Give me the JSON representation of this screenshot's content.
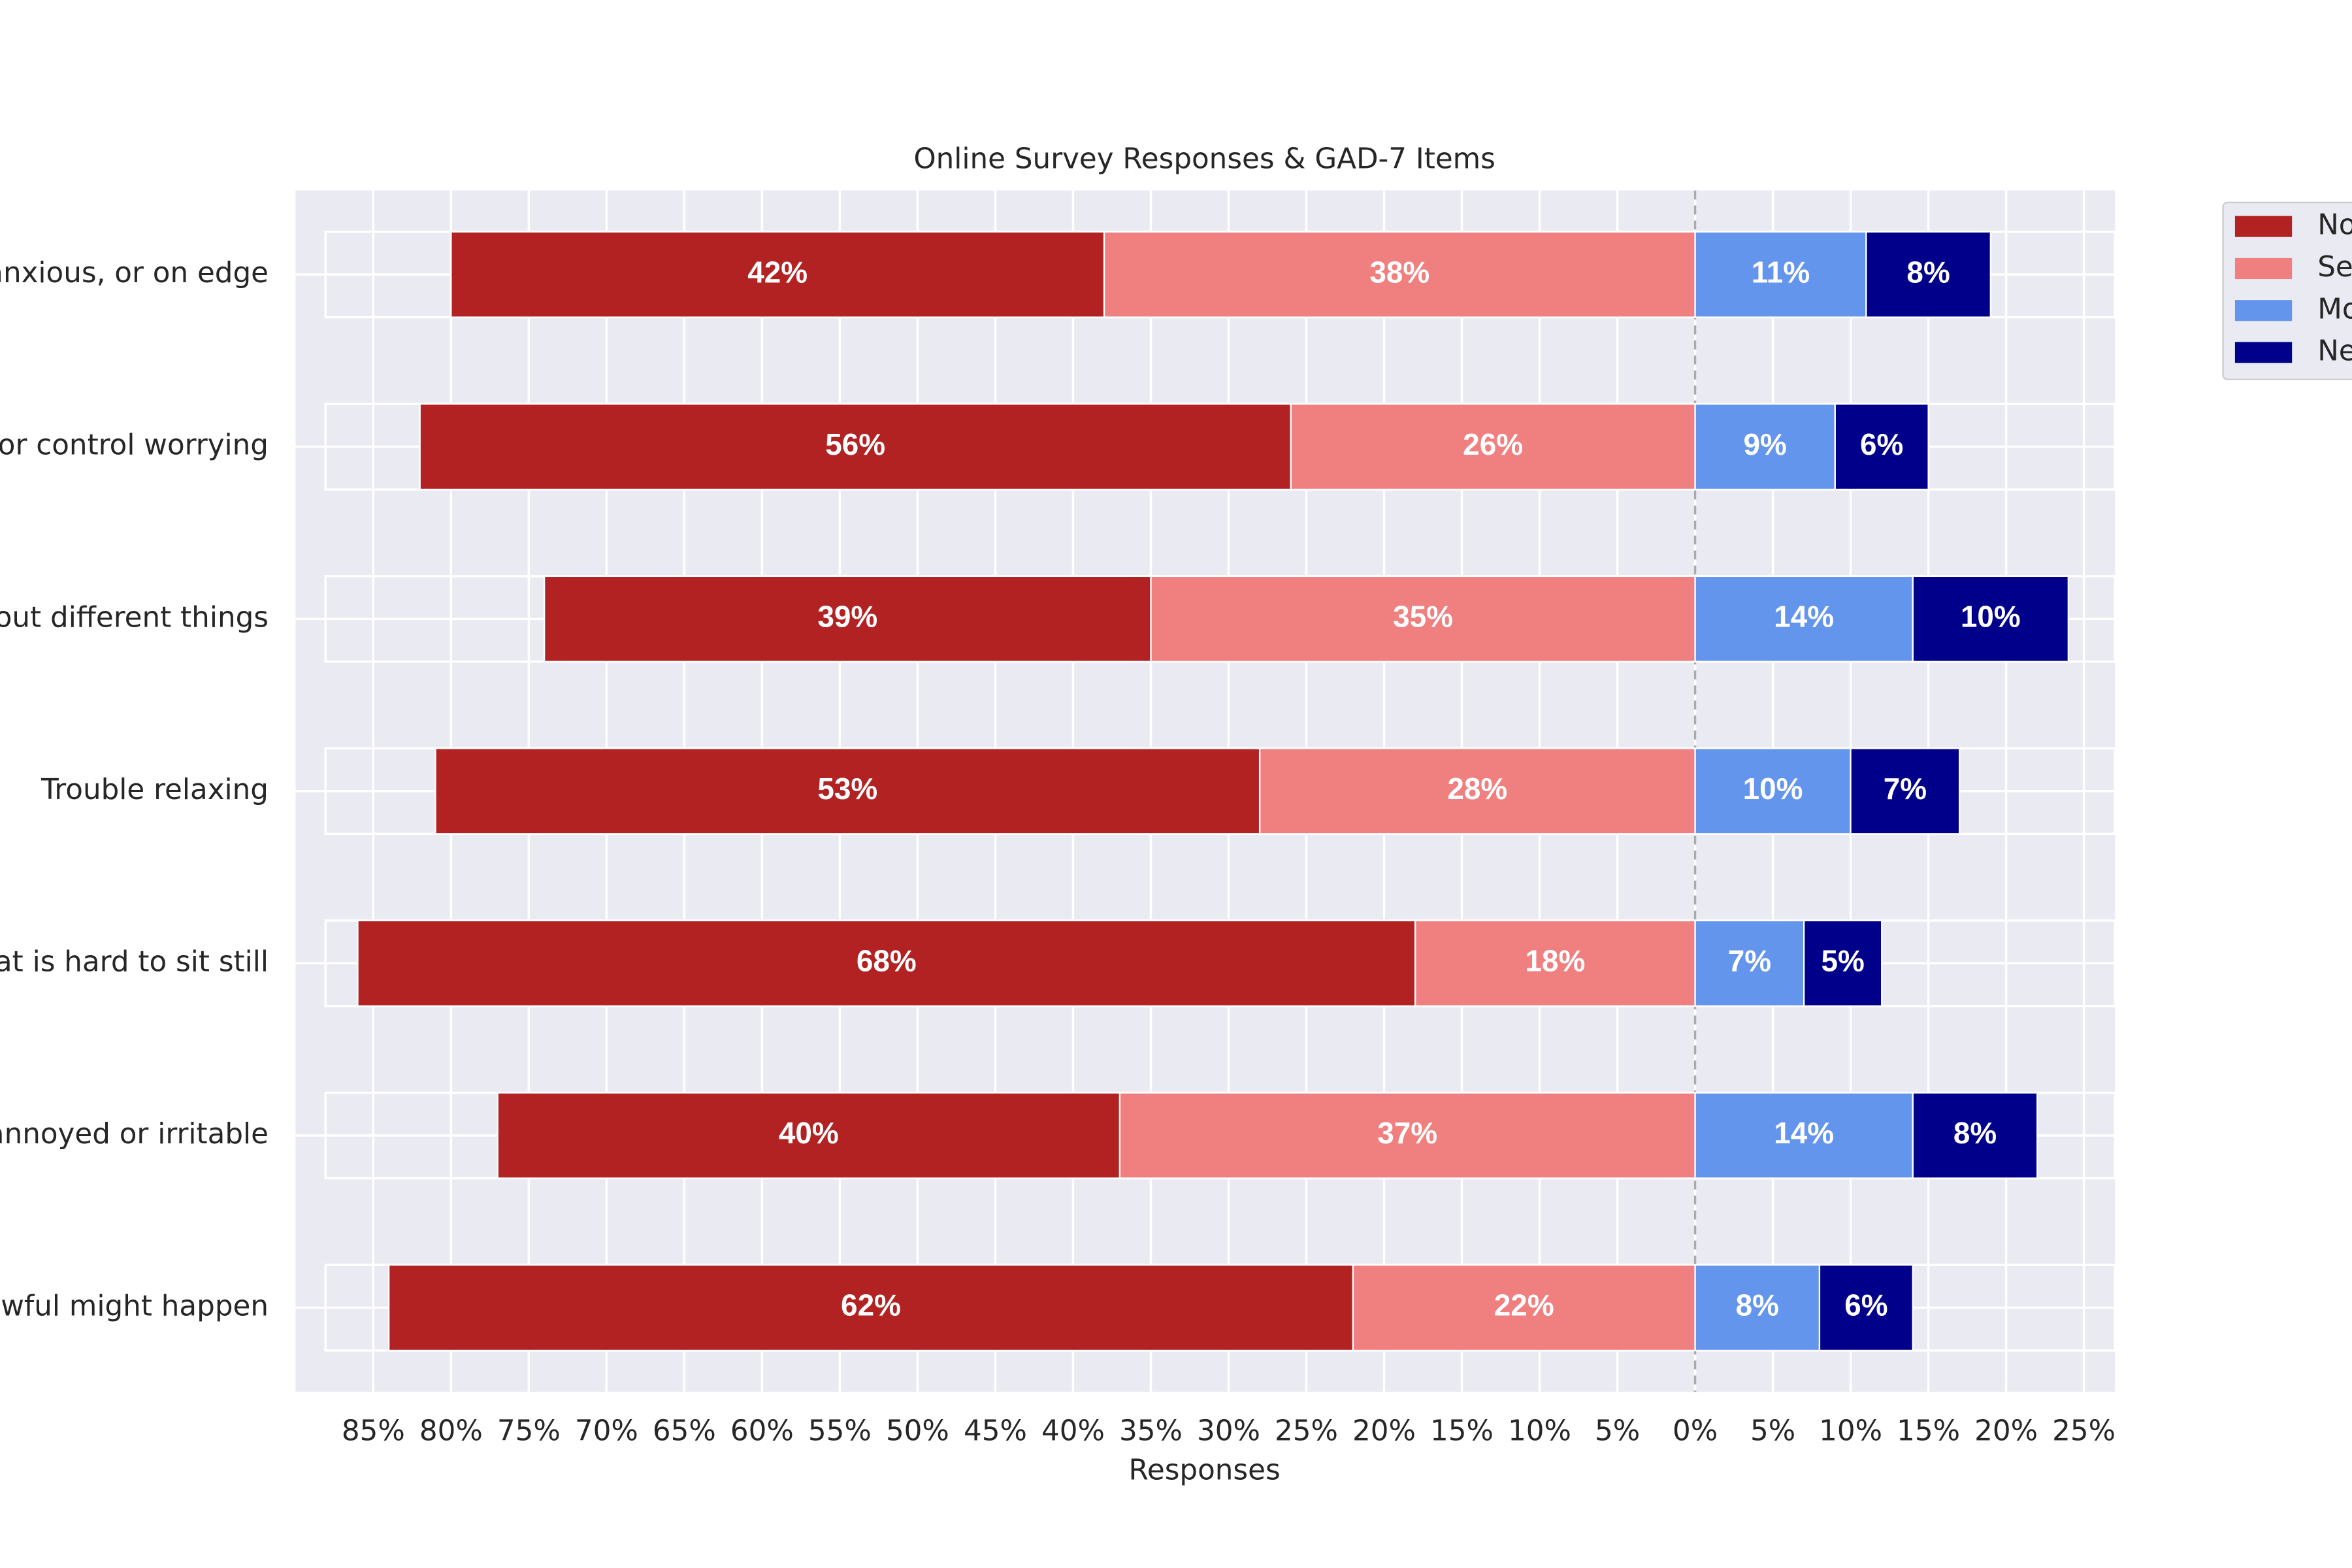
{
  "chart_data": {
    "type": "diverging-bar",
    "title": "Online Survey Responses & GAD-7 Items",
    "xlabel": "Responses",
    "categories": [
      "anxious, or on edge",
      "p or control worrying",
      "about different things",
      "Trouble relaxing",
      "that is hard to sit still",
      "y annoyed or irritable",
      "awful might happen"
    ],
    "series": [
      {
        "name": "No",
        "color": "#b22222",
        "side": "left",
        "values": [
          42,
          56,
          39,
          53,
          68,
          40,
          62
        ],
        "value_labels": [
          "42%",
          "56%",
          "39%",
          "53%",
          "68%",
          "40%",
          "62%"
        ]
      },
      {
        "name": "Se",
        "color": "#f08080",
        "side": "left",
        "values": [
          38,
          26,
          35,
          28,
          18,
          37,
          22
        ],
        "value_labels": [
          "38%",
          "26%",
          "35%",
          "28%",
          "18%",
          "37%",
          "22%"
        ]
      },
      {
        "name": "Mo",
        "color": "#6495ed",
        "side": "right",
        "values": [
          11,
          9,
          14,
          10,
          7,
          14,
          8
        ],
        "value_labels": [
          "11%",
          "9%",
          "14%",
          "10%",
          "7%",
          "14%",
          "8%"
        ]
      },
      {
        "name": "Ne",
        "color": "#00008b",
        "side": "right",
        "values": [
          8,
          6,
          10,
          7,
          5,
          8,
          6
        ],
        "value_labels": [
          "8%",
          "6%",
          "10%",
          "7%",
          "5%",
          "8%",
          "6%"
        ]
      }
    ],
    "xlim": [
      -90,
      27
    ],
    "xticks": [
      {
        "value": -85,
        "label": "85%"
      },
      {
        "value": -80,
        "label": "80%"
      },
      {
        "value": -75,
        "label": "75%"
      },
      {
        "value": -70,
        "label": "70%"
      },
      {
        "value": -65,
        "label": "65%"
      },
      {
        "value": -60,
        "label": "60%"
      },
      {
        "value": -55,
        "label": "55%"
      },
      {
        "value": -50,
        "label": "50%"
      },
      {
        "value": -45,
        "label": "45%"
      },
      {
        "value": -40,
        "label": "40%"
      },
      {
        "value": -35,
        "label": "35%"
      },
      {
        "value": -30,
        "label": "30%"
      },
      {
        "value": -25,
        "label": "25%"
      },
      {
        "value": -20,
        "label": "20%"
      },
      {
        "value": -15,
        "label": "15%"
      },
      {
        "value": -10,
        "label": "10%"
      },
      {
        "value": -5,
        "label": "5%"
      },
      {
        "value": 0,
        "label": "0%"
      },
      {
        "value": 5,
        "label": "5%"
      },
      {
        "value": 10,
        "label": "10%"
      },
      {
        "value": 15,
        "label": "15%"
      },
      {
        "value": 20,
        "label": "20%"
      },
      {
        "value": 25,
        "label": "25%"
      }
    ],
    "grid": true,
    "legend": "outside-upper-right"
  }
}
